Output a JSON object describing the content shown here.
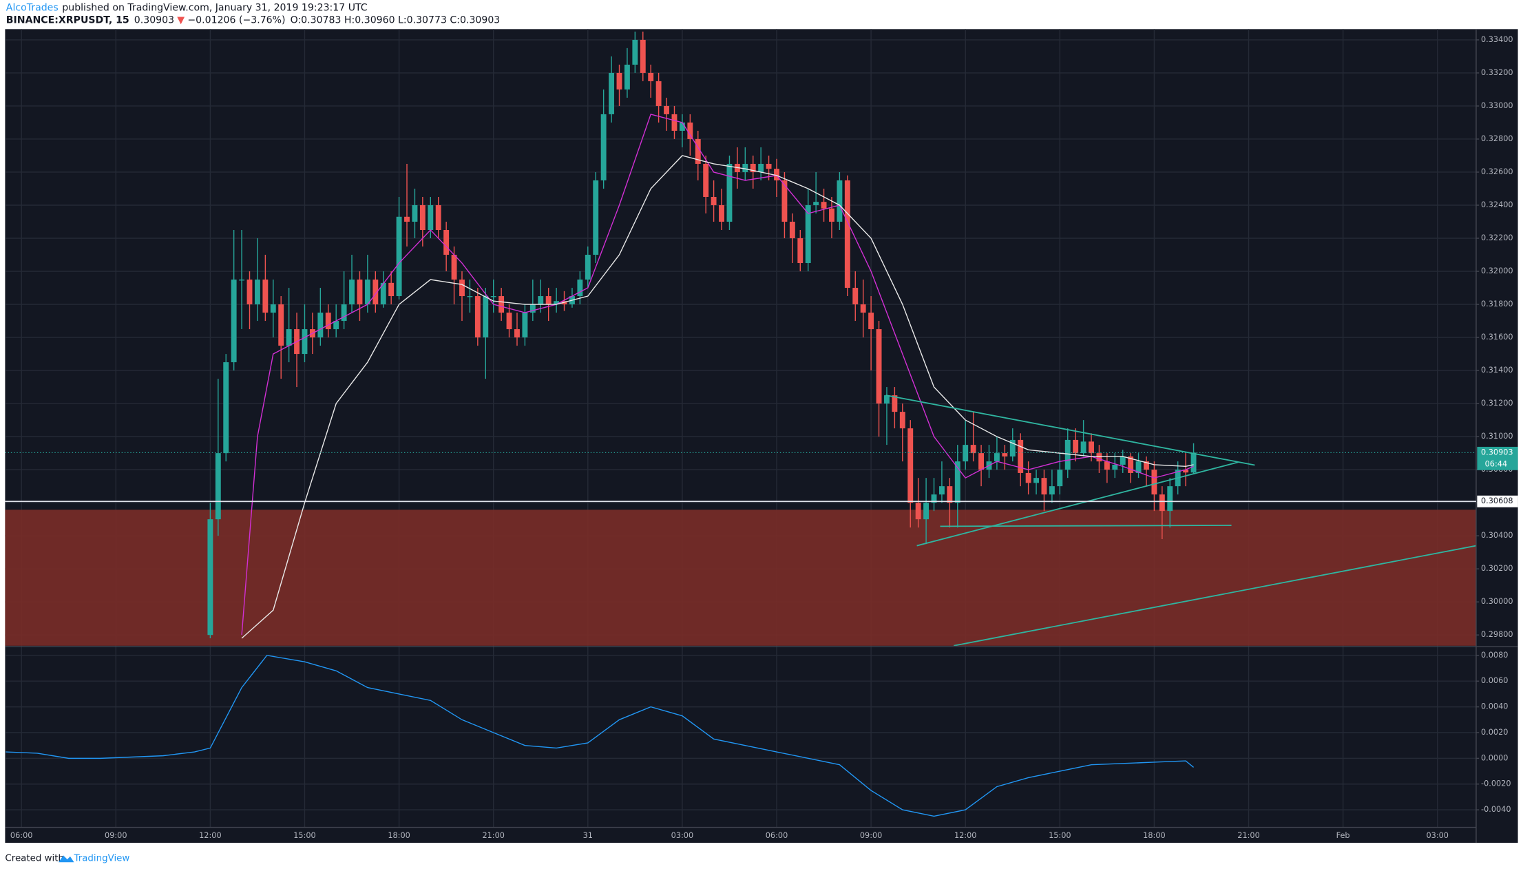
{
  "header": {
    "user": "AlcoTrades",
    "published": "published on TradingView.com, January 31, 2019 19:23:17 UTC",
    "symbol": "BINANCE:XRPUSDT, 15",
    "last": "0.30903",
    "arrow": "▼",
    "change": "−0.01206 (−3.76%)",
    "ohlc": "O:0.30783 H:0.30960 L:0.30773 C:0.30903"
  },
  "footer": {
    "created": "Created with",
    "brand": "TradingView"
  },
  "chart_data": {
    "type": "candlestick",
    "up_color": "#26a69a",
    "down_color": "#ef5350",
    "grid": true,
    "xlim": [
      5.48,
      52.23
    ],
    "xticks": [
      {
        "value": 6,
        "label": "06:00"
      },
      {
        "value": 9,
        "label": "09:00"
      },
      {
        "value": 12,
        "label": "12:00"
      },
      {
        "value": 15,
        "label": "15:00"
      },
      {
        "value": 18,
        "label": "18:00"
      },
      {
        "value": 21,
        "label": "21:00"
      },
      {
        "value": 24,
        "label": "31"
      },
      {
        "value": 27,
        "label": "03:00"
      },
      {
        "value": 30,
        "label": "06:00"
      },
      {
        "value": 33,
        "label": "09:00"
      },
      {
        "value": 36,
        "label": "12:00"
      },
      {
        "value": 39,
        "label": "15:00"
      },
      {
        "value": 42,
        "label": "18:00"
      },
      {
        "value": 45,
        "label": "21:00"
      },
      {
        "value": 48,
        "label": "Feb"
      },
      {
        "value": 51,
        "label": "03:00"
      }
    ],
    "ylim": [
      0.29735,
      0.33465
    ],
    "yticks": [
      {
        "value": 0.298,
        "label": "0.29800"
      },
      {
        "value": 0.3,
        "label": "0.30000"
      },
      {
        "value": 0.302,
        "label": "0.30200"
      },
      {
        "value": 0.304,
        "label": "0.30400"
      },
      {
        "value": 0.306,
        "label": "0.30600"
      },
      {
        "value": 0.308,
        "label": "0.30800"
      },
      {
        "value": 0.31,
        "label": "0.31000"
      },
      {
        "value": 0.312,
        "label": "0.31200"
      },
      {
        "value": 0.314,
        "label": "0.31400"
      },
      {
        "value": 0.316,
        "label": "0.31600"
      },
      {
        "value": 0.318,
        "label": "0.31800"
      },
      {
        "value": 0.32,
        "label": "0.32000"
      },
      {
        "value": 0.322,
        "label": "0.32200"
      },
      {
        "value": 0.324,
        "label": "0.32400"
      },
      {
        "value": 0.326,
        "label": "0.32600"
      },
      {
        "value": 0.328,
        "label": "0.32800"
      },
      {
        "value": 0.33,
        "label": "0.33000"
      },
      {
        "value": 0.332,
        "label": "0.33200"
      },
      {
        "value": 0.334,
        "label": "0.33400"
      }
    ],
    "last_price": 0.30903,
    "last_color": "#26a69a",
    "countdown": "06:44",
    "level": 0.30608,
    "x": [
      12,
      12.25,
      12.5,
      12.75,
      13,
      13.25,
      13.5,
      13.75,
      14,
      14.25,
      14.5,
      14.75,
      15,
      15.25,
      15.5,
      15.75,
      16,
      16.25,
      16.5,
      16.75,
      17,
      17.25,
      17.5,
      17.75,
      18,
      18.25,
      18.5,
      18.75,
      19,
      19.25,
      19.5,
      19.75,
      20,
      20.25,
      20.5,
      20.75,
      21,
      21.25,
      21.5,
      21.75,
      22,
      22.25,
      22.5,
      22.75,
      23,
      23.25,
      23.5,
      23.75,
      24,
      24.25,
      24.5,
      24.75,
      25,
      25.25,
      25.5,
      25.75,
      26,
      26.25,
      26.5,
      26.75,
      27,
      27.25,
      27.5,
      27.75,
      28,
      28.25,
      28.5,
      28.75,
      29,
      29.25,
      29.5,
      29.75,
      30,
      30.25,
      30.5,
      30.75,
      31,
      31.25,
      31.5,
      31.75,
      32,
      32.25,
      32.5,
      32.75,
      33,
      33.25,
      33.5,
      33.75,
      34,
      34.25,
      34.5,
      34.75,
      35,
      35.25,
      35.5,
      35.75,
      36,
      36.25,
      36.5,
      36.75,
      37,
      37.25,
      37.5,
      37.75,
      38,
      38.25,
      38.5,
      38.75,
      39,
      39.25,
      39.5,
      39.75,
      40,
      40.25,
      40.5,
      40.75,
      41,
      41.25,
      41.5,
      41.75,
      42,
      42.25,
      42.5,
      42.75,
      43,
      43.25
    ],
    "open": [
      0.298,
      0.305,
      0.309,
      0.3145,
      0.3195,
      0.3195,
      0.318,
      0.3195,
      0.3175,
      0.318,
      0.3155,
      0.3165,
      0.315,
      0.3165,
      0.316,
      0.3175,
      0.3165,
      0.317,
      0.318,
      0.3195,
      0.318,
      0.3195,
      0.318,
      0.3193,
      0.3185,
      0.3233,
      0.323,
      0.324,
      0.3225,
      0.324,
      0.3225,
      0.321,
      0.3195,
      0.3185,
      0.3185,
      0.316,
      0.3185,
      0.3185,
      0.3175,
      0.3165,
      0.316,
      0.3175,
      0.318,
      0.3185,
      0.318,
      0.3182,
      0.318,
      0.3185,
      0.3195,
      0.321,
      0.3255,
      0.3295,
      0.332,
      0.331,
      0.3325,
      0.334,
      0.332,
      0.3315,
      0.33,
      0.3295,
      0.3285,
      0.329,
      0.328,
      0.3265,
      0.3245,
      0.324,
      0.323,
      0.3265,
      0.326,
      0.3265,
      0.326,
      0.3265,
      0.3262,
      0.3255,
      0.323,
      0.322,
      0.3205,
      0.324,
      0.3242,
      0.3238,
      0.323,
      0.3255,
      0.319,
      0.318,
      0.3175,
      0.3165,
      0.312,
      0.3125,
      0.3115,
      0.3105,
      0.306,
      0.305,
      0.306,
      0.3065,
      0.307,
      0.306,
      0.3085,
      0.3095,
      0.309,
      0.308,
      0.3085,
      0.309,
      0.3088,
      0.3098,
      0.3078,
      0.3072,
      0.3075,
      0.3065,
      0.307,
      0.308,
      0.3098,
      0.309,
      0.3097,
      0.309,
      0.3085,
      0.308,
      0.3083,
      0.3088,
      0.3078,
      0.3085,
      0.308,
      0.3065,
      0.3055,
      0.307,
      0.308,
      0.30783
    ],
    "high": [
      0.306,
      0.3135,
      0.315,
      0.3225,
      0.3225,
      0.32,
      0.322,
      0.321,
      0.3195,
      0.3185,
      0.319,
      0.3175,
      0.318,
      0.3175,
      0.319,
      0.318,
      0.318,
      0.32,
      0.321,
      0.32,
      0.321,
      0.32,
      0.32,
      0.32,
      0.3245,
      0.3265,
      0.325,
      0.3245,
      0.3245,
      0.3245,
      0.323,
      0.3215,
      0.32,
      0.3195,
      0.319,
      0.319,
      0.3195,
      0.319,
      0.318,
      0.3175,
      0.318,
      0.3195,
      0.3195,
      0.319,
      0.319,
      0.3188,
      0.319,
      0.32,
      0.3215,
      0.326,
      0.331,
      0.333,
      0.3325,
      0.3335,
      0.3345,
      0.3345,
      0.3325,
      0.332,
      0.3305,
      0.33,
      0.3295,
      0.3295,
      0.3285,
      0.327,
      0.3255,
      0.325,
      0.327,
      0.3275,
      0.3275,
      0.327,
      0.3275,
      0.327,
      0.3268,
      0.326,
      0.3235,
      0.3225,
      0.325,
      0.326,
      0.325,
      0.3245,
      0.326,
      0.3258,
      0.32,
      0.3195,
      0.3185,
      0.317,
      0.313,
      0.313,
      0.312,
      0.311,
      0.3075,
      0.3075,
      0.3075,
      0.3085,
      0.3075,
      0.3095,
      0.311,
      0.3115,
      0.3095,
      0.3095,
      0.31,
      0.3095,
      0.3105,
      0.3102,
      0.3085,
      0.308,
      0.308,
      0.308,
      0.309,
      0.3105,
      0.3105,
      0.311,
      0.3102,
      0.3095,
      0.309,
      0.309,
      0.3092,
      0.309,
      0.309,
      0.3088,
      0.3085,
      0.307,
      0.3075,
      0.3085,
      0.309,
      0.3096
    ],
    "low": [
      0.2978,
      0.304,
      0.3085,
      0.314,
      0.3165,
      0.3165,
      0.317,
      0.317,
      0.316,
      0.3135,
      0.3145,
      0.313,
      0.3145,
      0.315,
      0.3155,
      0.316,
      0.316,
      0.3165,
      0.3175,
      0.317,
      0.3175,
      0.3175,
      0.3178,
      0.318,
      0.3183,
      0.3215,
      0.322,
      0.3215,
      0.322,
      0.322,
      0.32,
      0.318,
      0.317,
      0.3175,
      0.3155,
      0.3135,
      0.3175,
      0.317,
      0.316,
      0.3155,
      0.3155,
      0.317,
      0.3175,
      0.317,
      0.3175,
      0.3176,
      0.3178,
      0.318,
      0.319,
      0.3205,
      0.325,
      0.329,
      0.33,
      0.3305,
      0.332,
      0.3315,
      0.3305,
      0.329,
      0.3285,
      0.328,
      0.3275,
      0.327,
      0.3255,
      0.3235,
      0.323,
      0.3225,
      0.3225,
      0.325,
      0.3255,
      0.325,
      0.3255,
      0.3255,
      0.3245,
      0.322,
      0.3205,
      0.32,
      0.32,
      0.3235,
      0.323,
      0.322,
      0.3225,
      0.3185,
      0.317,
      0.316,
      0.314,
      0.31,
      0.3095,
      0.3105,
      0.3085,
      0.3045,
      0.3045,
      0.3035,
      0.3055,
      0.306,
      0.3045,
      0.3045,
      0.308,
      0.3085,
      0.307,
      0.3075,
      0.308,
      0.308,
      0.3085,
      0.307,
      0.3065,
      0.3065,
      0.3055,
      0.306,
      0.3065,
      0.3075,
      0.3085,
      0.3088,
      0.3085,
      0.3078,
      0.3072,
      0.3075,
      0.3078,
      0.3072,
      0.3075,
      0.307,
      0.3055,
      0.3038,
      0.3045,
      0.3065,
      0.307,
      0.30773
    ],
    "close": [
      0.305,
      0.309,
      0.3145,
      0.3195,
      0.3195,
      0.318,
      0.3195,
      0.3175,
      0.318,
      0.3155,
      0.3165,
      0.315,
      0.3165,
      0.316,
      0.3175,
      0.3165,
      0.317,
      0.318,
      0.3195,
      0.318,
      0.3195,
      0.318,
      0.3193,
      0.3185,
      0.3233,
      0.323,
      0.324,
      0.3225,
      0.324,
      0.3225,
      0.321,
      0.3195,
      0.3185,
      0.3185,
      0.316,
      0.3185,
      0.3185,
      0.3175,
      0.3165,
      0.316,
      0.3175,
      0.318,
      0.3185,
      0.318,
      0.3182,
      0.318,
      0.3185,
      0.3195,
      0.321,
      0.3255,
      0.3295,
      0.332,
      0.331,
      0.3325,
      0.334,
      0.332,
      0.3315,
      0.33,
      0.3295,
      0.3285,
      0.329,
      0.328,
      0.3265,
      0.3245,
      0.324,
      0.323,
      0.3265,
      0.326,
      0.3265,
      0.326,
      0.3265,
      0.3262,
      0.3255,
      0.323,
      0.322,
      0.3205,
      0.324,
      0.3242,
      0.3238,
      0.323,
      0.3255,
      0.319,
      0.318,
      0.3175,
      0.3165,
      0.312,
      0.3125,
      0.3115,
      0.3105,
      0.306,
      0.305,
      0.306,
      0.3065,
      0.307,
      0.306,
      0.3085,
      0.3095,
      0.309,
      0.308,
      0.3085,
      0.309,
      0.3088,
      0.3098,
      0.3078,
      0.3072,
      0.3075,
      0.3065,
      0.307,
      0.308,
      0.3098,
      0.309,
      0.3097,
      0.309,
      0.3085,
      0.308,
      0.3083,
      0.3088,
      0.3078,
      0.3085,
      0.308,
      0.3065,
      0.3055,
      0.307,
      0.308,
      0.30783,
      0.30903
    ],
    "series": [
      {
        "color": "#d12fd4",
        "x": [
          13,
          13.5,
          14,
          15,
          16,
          17,
          18,
          19,
          20,
          21,
          22,
          23,
          24,
          25,
          26,
          27,
          28,
          29,
          30,
          31,
          32,
          33,
          34,
          35,
          36,
          37,
          38,
          39,
          40,
          41,
          42,
          43,
          43.25
        ],
        "values": [
          0.298,
          0.31,
          0.315,
          0.316,
          0.317,
          0.318,
          0.3205,
          0.3225,
          0.3205,
          0.318,
          0.3175,
          0.318,
          0.319,
          0.324,
          0.3295,
          0.329,
          0.326,
          0.3255,
          0.3258,
          0.3235,
          0.324,
          0.32,
          0.315,
          0.31,
          0.3075,
          0.3085,
          0.308,
          0.3085,
          0.3088,
          0.3082,
          0.3075,
          0.308,
          0.3082
        ]
      },
      {
        "color": "#e8e8e8",
        "x": [
          13,
          14,
          15,
          16,
          17,
          18,
          19,
          20,
          21,
          22,
          23,
          24,
          25,
          26,
          27,
          28,
          29,
          30,
          31,
          32,
          33,
          34,
          35,
          36,
          37,
          38,
          39,
          40,
          41,
          42,
          43,
          43.25
        ],
        "values": [
          0.2978,
          0.2995,
          0.306,
          0.312,
          0.3145,
          0.318,
          0.3195,
          0.3192,
          0.3182,
          0.318,
          0.318,
          0.3185,
          0.321,
          0.325,
          0.327,
          0.3265,
          0.3262,
          0.3258,
          0.325,
          0.324,
          0.322,
          0.318,
          0.313,
          0.311,
          0.31,
          0.3092,
          0.309,
          0.3088,
          0.3088,
          0.3083,
          0.3082,
          0.3083
        ]
      }
    ],
    "oscillator": {
      "color": "#2196f3",
      "ylim": [
        -0.00536,
        0.0086
      ],
      "yticks": [
        {
          "value": -0.004,
          "label": "-0.0040"
        },
        {
          "value": -0.002,
          "label": "-0.0020"
        },
        {
          "value": 0,
          "label": "0.0000"
        },
        {
          "value": 0.002,
          "label": "0.0020"
        },
        {
          "value": 0.004,
          "label": "0.0040"
        },
        {
          "value": 0.006,
          "label": "0.0060"
        },
        {
          "value": 0.008,
          "label": "0.0080"
        }
      ],
      "x": [
        5.5,
        6.5,
        7.5,
        8.5,
        9.5,
        10.5,
        11.5,
        12,
        13,
        13.8,
        15,
        16,
        17,
        18,
        19,
        20,
        21,
        22,
        23,
        24,
        25,
        26,
        27,
        28,
        29,
        30,
        31,
        32,
        33,
        34,
        35,
        36,
        37,
        38,
        39,
        40,
        41,
        42,
        43,
        43.25
      ],
      "values": [
        0.0005,
        0.0004,
        0.0,
        0.0,
        0.0001,
        0.0002,
        0.0005,
        0.0008,
        0.0055,
        0.008,
        0.0075,
        0.0068,
        0.0055,
        0.005,
        0.0045,
        0.003,
        0.002,
        0.001,
        0.0008,
        0.0012,
        0.003,
        0.004,
        0.0033,
        0.0015,
        0.001,
        0.0005,
        0.0,
        -0.0005,
        -0.0025,
        -0.004,
        -0.0045,
        -0.004,
        -0.0022,
        -0.0015,
        -0.001,
        -0.0005,
        -0.0004,
        -0.0003,
        -0.0002,
        -0.0007
      ]
    }
  }
}
